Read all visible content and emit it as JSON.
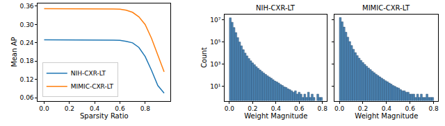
{
  "chart_data": [
    {
      "type": "line",
      "x_label": "Sparsity Ratio",
      "y_label": "Mean AP",
      "x": [
        0,
        0.05,
        0.1,
        0.15,
        0.2,
        0.25,
        0.3,
        0.35,
        0.4,
        0.45,
        0.5,
        0.55,
        0.6,
        0.65,
        0.7,
        0.75,
        0.8,
        0.85,
        0.9,
        0.95
      ],
      "series": [
        {
          "name": "NIH-CXR-LT",
          "color": "#1f77b4",
          "values": [
            0.25,
            0.25,
            0.25,
            0.25,
            0.25,
            0.25,
            0.25,
            0.25,
            0.25,
            0.25,
            0.25,
            0.249,
            0.248,
            0.245,
            0.24,
            0.225,
            0.195,
            0.15,
            0.1,
            0.075
          ]
        },
        {
          "name": "MIMIC-CXR-LT",
          "color": "#ff7f0e",
          "values": [
            0.352,
            0.352,
            0.352,
            0.352,
            0.352,
            0.352,
            0.352,
            0.352,
            0.352,
            0.352,
            0.352,
            0.351,
            0.35,
            0.347,
            0.34,
            0.325,
            0.3,
            0.255,
            0.2,
            0.145
          ]
        }
      ],
      "xlim": [
        -0.05,
        1.0
      ],
      "xticks": [
        {
          "value": 0,
          "label": "0.0"
        },
        {
          "value": 0.2,
          "label": "0.2"
        },
        {
          "value": 0.4,
          "label": "0.4"
        },
        {
          "value": 0.6,
          "label": "0.6"
        },
        {
          "value": 0.8,
          "label": "0.8"
        }
      ],
      "ylim": [
        0.05,
        0.37
      ],
      "yticks": [
        0.06,
        0.12,
        0.18,
        0.24,
        {
          "value": 0.3,
          "label": "0.30"
        },
        0.36
      ],
      "legend": "lower left",
      "grid": false
    },
    {
      "type": "histogram",
      "title": "NIH-CXR-LT",
      "x_label": "Weight Magnitude",
      "y_label": "Count",
      "color": "#4c86b5",
      "bins": [
        0,
        0.016,
        0.032,
        0.048,
        0.064,
        0.08,
        0.096,
        0.112,
        0.128,
        0.144,
        0.16,
        0.176,
        0.192,
        0.208,
        0.224,
        0.24,
        0.256,
        0.272,
        0.288,
        0.304,
        0.32,
        0.336,
        0.352,
        0.368,
        0.384,
        0.4,
        0.416,
        0.432,
        0.448,
        0.464,
        0.48,
        0.496,
        0.512,
        0.528,
        0.544,
        0.56,
        0.576,
        0.592,
        0.608,
        0.624,
        0.64,
        0.656,
        0.672,
        0.688,
        0.704,
        0.72,
        0.736,
        0.752,
        0.768,
        0.784,
        0.8
      ],
      "counts": [
        15000000,
        6000000,
        2000000,
        700000,
        250000,
        100000,
        45000,
        20000,
        10000,
        5500,
        3200,
        2000,
        1300,
        900,
        600,
        420,
        300,
        220,
        160,
        120,
        90,
        70,
        55,
        40,
        30,
        25,
        20,
        15,
        12,
        9,
        8,
        6,
        5,
        4,
        3,
        4,
        2,
        3,
        2,
        1,
        2,
        1,
        3,
        1,
        2,
        1,
        0,
        2,
        1,
        1
      ],
      "xlim": [
        -0.04,
        0.84
      ],
      "xticks": [
        {
          "value": 0,
          "label": "0.0"
        },
        {
          "value": 0.2,
          "label": "0.2"
        },
        {
          "value": 0.4,
          "label": "0.4"
        },
        {
          "value": 0.6,
          "label": "0.6"
        },
        {
          "value": 0.8,
          "label": "0.8"
        }
      ],
      "ylim": [
        0.5,
        30000000
      ],
      "yticks": [
        {
          "value": 10,
          "label": "10¹"
        },
        {
          "value": 1000,
          "label": "10³"
        },
        {
          "value": 100000,
          "label": "10⁵"
        },
        {
          "value": 10000000,
          "label": "10⁷"
        }
      ],
      "log": "y",
      "grid": false
    },
    {
      "type": "histogram",
      "title": "MIMIC-CXR-LT",
      "x_label": "Weight Magnitude",
      "color": "#4c86b5",
      "bins": [
        0,
        0.016,
        0.032,
        0.048,
        0.064,
        0.08,
        0.096,
        0.112,
        0.128,
        0.144,
        0.16,
        0.176,
        0.192,
        0.208,
        0.224,
        0.24,
        0.256,
        0.272,
        0.288,
        0.304,
        0.32,
        0.336,
        0.352,
        0.368,
        0.384,
        0.4,
        0.416,
        0.432,
        0.448,
        0.464,
        0.48,
        0.496,
        0.512,
        0.528,
        0.544,
        0.56,
        0.576,
        0.592,
        0.608,
        0.624,
        0.64,
        0.656,
        0.672,
        0.688,
        0.704,
        0.72,
        0.736,
        0.752,
        0.768,
        0.784,
        0.8
      ],
      "counts": [
        16000000,
        6500000,
        2200000,
        750000,
        270000,
        110000,
        48000,
        22000,
        11000,
        6000,
        3500,
        2200,
        1400,
        950,
        650,
        450,
        320,
        230,
        170,
        125,
        95,
        72,
        55,
        42,
        32,
        26,
        20,
        16,
        12,
        10,
        8,
        7,
        5,
        4,
        4,
        3,
        3,
        2,
        2,
        2,
        1,
        2,
        1,
        2,
        1,
        1,
        2,
        1,
        1,
        1
      ],
      "xlim": [
        -0.04,
        0.84
      ],
      "xticks": [
        {
          "value": 0,
          "label": "0.0"
        },
        {
          "value": 0.2,
          "label": "0.2"
        },
        {
          "value": 0.4,
          "label": "0.4"
        },
        {
          "value": 0.6,
          "label": "0.6"
        },
        {
          "value": 0.8,
          "label": "0.8"
        }
      ],
      "ylim": [
        0.5,
        30000000
      ],
      "yticks": [
        {
          "value": 10,
          "label": "10¹"
        },
        {
          "value": 1000,
          "label": "10³"
        },
        {
          "value": 100000,
          "label": "10⁵"
        },
        {
          "value": 10000000,
          "label": "10⁷"
        }
      ],
      "log": "y",
      "tick_labels": "x",
      "grid": false
    }
  ]
}
